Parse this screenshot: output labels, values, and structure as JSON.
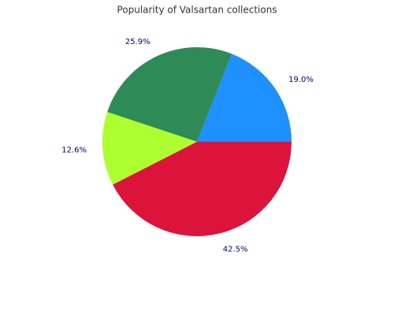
{
  "chart_data": {
    "type": "pie",
    "title": "Popularity of Valsartan collections",
    "values": [
      19.0,
      25.9,
      12.6,
      42.5
    ],
    "value_labels": [
      "19.0%",
      "25.9%",
      "12.6%",
      "42.5%"
    ],
    "colors": [
      "#1e90ff",
      "#2e8b57",
      "#adff2f",
      "#dc143c"
    ]
  }
}
